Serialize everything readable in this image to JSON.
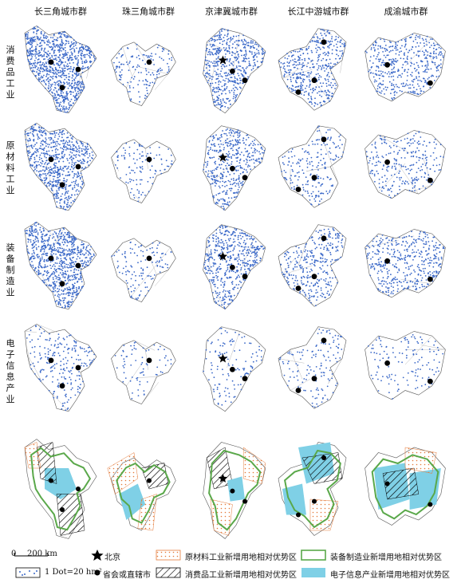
{
  "columns": [
    {
      "id": "yrd",
      "name": "长三角城市群"
    },
    {
      "id": "prd",
      "name": "珠三角城市群"
    },
    {
      "id": "bth",
      "name": "京津冀城市群"
    },
    {
      "id": "cjz",
      "name": "长江中游城市群"
    },
    {
      "id": "cy",
      "name": "成渝城市群"
    }
  ],
  "rows": [
    {
      "id": "consumer",
      "label": "消费品工业",
      "chars": [
        "消",
        "费",
        "品",
        "工",
        "业"
      ]
    },
    {
      "id": "raw",
      "label": "原材料工业",
      "chars": [
        "原",
        "材",
        "料",
        "工",
        "业"
      ]
    },
    {
      "id": "equip",
      "label": "装备制造业",
      "chars": [
        "装",
        "备",
        "制",
        "造",
        "业"
      ]
    },
    {
      "id": "elec",
      "label": "电子信息产业",
      "chars": [
        "电",
        "子",
        "信",
        "息",
        "产",
        "业"
      ]
    }
  ],
  "colors": {
    "dot": "#3a68c8",
    "boundary": "#555555",
    "green": "#5aa84a",
    "cyan": "#7fd0e6",
    "orange": "#e37a3a",
    "black": "#000000"
  },
  "legend": {
    "scale_zero": "0",
    "scale_label": "200 km",
    "dot_label": "1 Dot=20 hm²",
    "beijing_label": "北京",
    "capital_label": "省会或直辖市",
    "raw_label": "原材料工业新增用地相对优势区",
    "consumer_label": "消费品工业新增用地相对优势区",
    "equip_label": "装备制造业新增用地相对优势区",
    "elec_label": "电子信息产业新增用地相对优势区"
  }
}
